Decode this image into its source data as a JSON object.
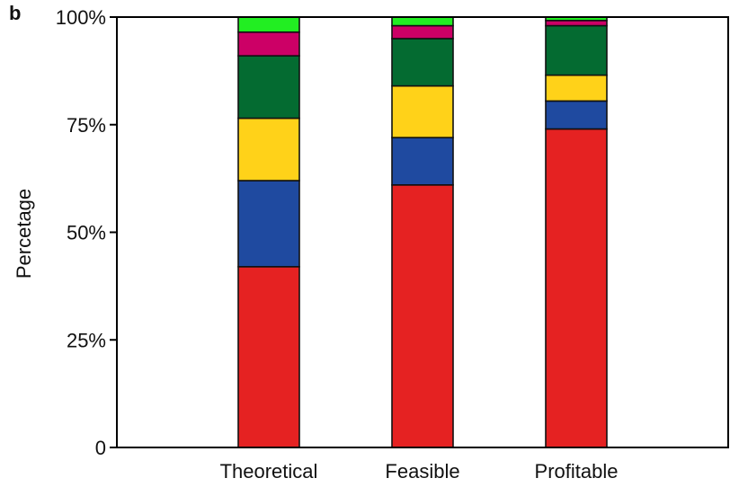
{
  "panel_label": "b",
  "chart_data": {
    "type": "bar",
    "stacked": true,
    "title": "",
    "xlabel": "",
    "ylabel": "Percetage",
    "ylim": [
      0,
      100
    ],
    "yticks": [
      {
        "value": 0,
        "label": "0"
      },
      {
        "value": 25,
        "label": "25%"
      },
      {
        "value": 50,
        "label": "50%"
      },
      {
        "value": 75,
        "label": "75%"
      },
      {
        "value": 100,
        "label": "100%"
      }
    ],
    "categories": [
      "Theoretical",
      "Feasible",
      "Profitable"
    ],
    "grid": false,
    "legend": "none",
    "series": [
      {
        "color": "#e52222",
        "values": [
          42,
          61,
          74
        ]
      },
      {
        "color": "#1f4aa0",
        "values": [
          20,
          11,
          6.5
        ]
      },
      {
        "color": "#ffd219",
        "values": [
          14.5,
          12,
          6
        ]
      },
      {
        "color": "#046b31",
        "values": [
          14.5,
          11,
          11.5
        ]
      },
      {
        "color": "#cc0066",
        "values": [
          5.5,
          3,
          1.2
        ]
      },
      {
        "color": "#22ee22",
        "values": [
          3.5,
          2,
          0.8
        ]
      }
    ]
  }
}
